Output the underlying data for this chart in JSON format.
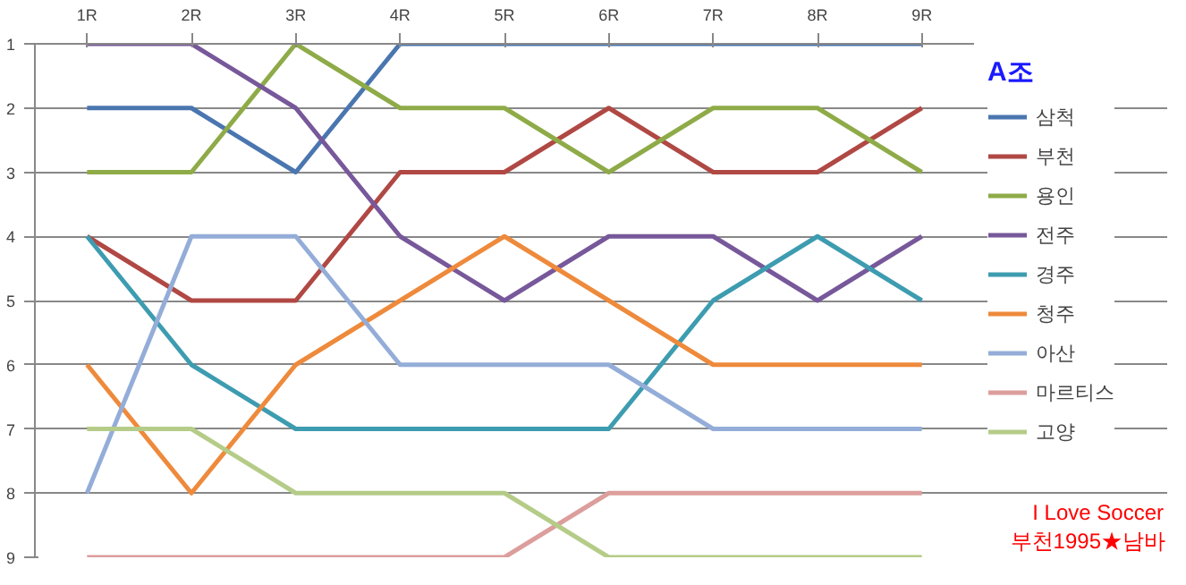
{
  "chart_data": {
    "type": "line",
    "categories": [
      "1R",
      "2R",
      "3R",
      "4R",
      "5R",
      "6R",
      "7R",
      "8R",
      "9R"
    ],
    "ylim": [
      9,
      1
    ],
    "yticks": [
      1,
      2,
      3,
      4,
      5,
      6,
      7,
      8,
      9
    ],
    "grid": "y",
    "legend": "right",
    "legend_title": "A조",
    "marker": "none",
    "line_style": "solid",
    "annotations": [
      "I Love Soccer\n부천1995★남바"
    ],
    "series": [
      {
        "name": "삼척",
        "color": "#4a76b0",
        "values": [
          2,
          2,
          3,
          1,
          1,
          1,
          1,
          1,
          1
        ]
      },
      {
        "name": "부천",
        "color": "#b04844",
        "values": [
          4,
          5,
          5,
          3,
          3,
          2,
          3,
          3,
          2
        ]
      },
      {
        "name": "용인",
        "color": "#8eab48",
        "values": [
          3,
          3,
          1,
          2,
          2,
          3,
          2,
          2,
          3
        ]
      },
      {
        "name": "전주",
        "color": "#77589a",
        "values": [
          1,
          1,
          2,
          4,
          5,
          4,
          4,
          5,
          4
        ]
      },
      {
        "name": "경주",
        "color": "#3d9cb0",
        "values": [
          4,
          6,
          7,
          7,
          7,
          7,
          5,
          4,
          5
        ]
      },
      {
        "name": "청주",
        "color": "#ee8a3c",
        "values": [
          6,
          8,
          6,
          5,
          4,
          5,
          6,
          6,
          6
        ]
      },
      {
        "name": "아산",
        "color": "#94add8",
        "values": [
          8,
          4,
          4,
          6,
          6,
          6,
          7,
          7,
          7
        ]
      },
      {
        "name": "마르티스",
        "color": "#dc9e9c",
        "values": [
          9,
          9,
          9,
          9,
          9,
          8,
          8,
          8,
          8
        ]
      },
      {
        "name": "고양",
        "color": "#b5cc88",
        "values": [
          7,
          7,
          8,
          8,
          8,
          9,
          9,
          9,
          9
        ]
      }
    ]
  }
}
